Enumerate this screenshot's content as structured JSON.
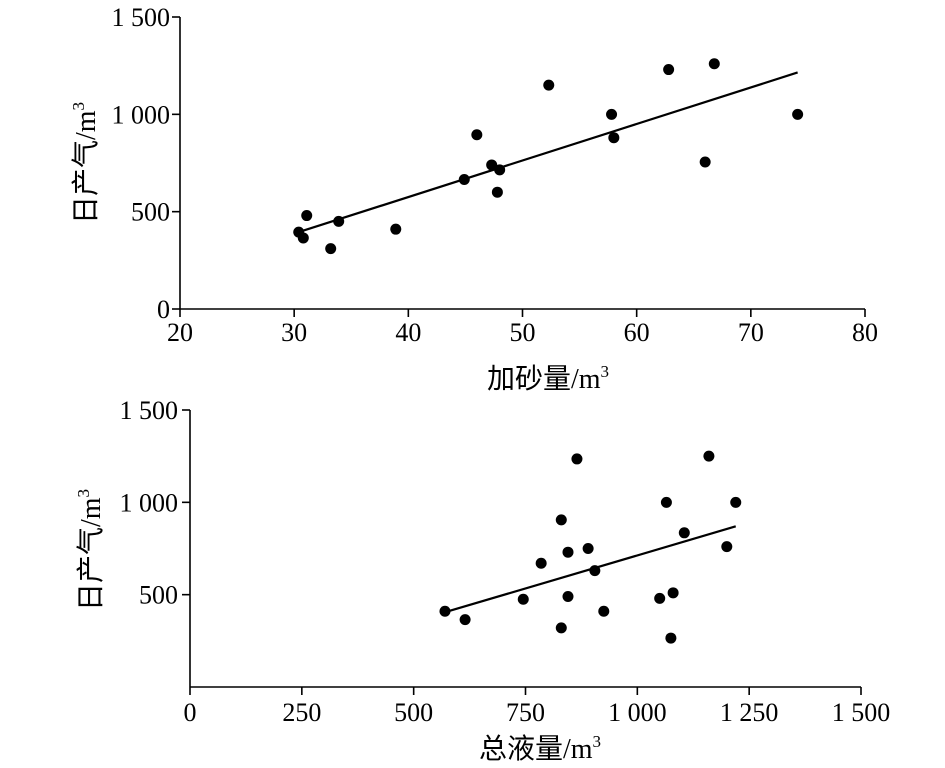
{
  "chart_data": [
    {
      "type": "scatter",
      "xlabel": "加砂量/m",
      "xlabel_sup": "3",
      "ylabel": "日产气/m",
      "ylabel_sup": "3",
      "xlim": [
        20,
        80
      ],
      "ylim": [
        0,
        1500
      ],
      "xticks": [
        20,
        30,
        40,
        50,
        60,
        70,
        80
      ],
      "xtick_labels": [
        "20",
        "30",
        "40",
        "50",
        "60",
        "70",
        "80"
      ],
      "yticks": [
        0,
        500,
        1000,
        1500
      ],
      "ytick_labels": [
        "0",
        "500",
        "1 000",
        "1 500"
      ],
      "grid": false,
      "points": [
        {
          "x": 30.4,
          "y": 395
        },
        {
          "x": 30.8,
          "y": 365
        },
        {
          "x": 31.1,
          "y": 480
        },
        {
          "x": 33.2,
          "y": 310
        },
        {
          "x": 33.9,
          "y": 450
        },
        {
          "x": 38.9,
          "y": 410
        },
        {
          "x": 44.9,
          "y": 665
        },
        {
          "x": 46.0,
          "y": 895
        },
        {
          "x": 47.3,
          "y": 740
        },
        {
          "x": 47.8,
          "y": 600
        },
        {
          "x": 48.0,
          "y": 715
        },
        {
          "x": 52.3,
          "y": 1150
        },
        {
          "x": 57.8,
          "y": 1000
        },
        {
          "x": 58.0,
          "y": 880
        },
        {
          "x": 62.8,
          "y": 1230
        },
        {
          "x": 66.0,
          "y": 755
        },
        {
          "x": 66.8,
          "y": 1260
        },
        {
          "x": 74.1,
          "y": 1000
        }
      ],
      "trendline": {
        "x": [
          30.4,
          74.1
        ],
        "y": [
          395,
          1215
        ]
      }
    },
    {
      "type": "scatter",
      "xlabel": "总液量/m",
      "xlabel_sup": "3",
      "ylabel": "日产气/m",
      "ylabel_sup": "3",
      "xlim": [
        0,
        1500
      ],
      "ylim": [
        0,
        1500
      ],
      "xticks": [
        0,
        250,
        500,
        750,
        1000,
        1250,
        1500
      ],
      "xtick_labels": [
        "0",
        "250",
        "500",
        "750",
        "1 000",
        "1 250",
        "1 500"
      ],
      "yticks": [
        500,
        1000,
        1500
      ],
      "ytick_labels": [
        "500",
        "1 000",
        "1 500"
      ],
      "grid": false,
      "points": [
        {
          "x": 570,
          "y": 410
        },
        {
          "x": 615,
          "y": 365
        },
        {
          "x": 745,
          "y": 475
        },
        {
          "x": 785,
          "y": 670
        },
        {
          "x": 830,
          "y": 905
        },
        {
          "x": 830,
          "y": 320
        },
        {
          "x": 845,
          "y": 730
        },
        {
          "x": 845,
          "y": 490
        },
        {
          "x": 865,
          "y": 1235
        },
        {
          "x": 890,
          "y": 750
        },
        {
          "x": 905,
          "y": 630
        },
        {
          "x": 925,
          "y": 410
        },
        {
          "x": 1050,
          "y": 480
        },
        {
          "x": 1065,
          "y": 1000
        },
        {
          "x": 1075,
          "y": 265
        },
        {
          "x": 1080,
          "y": 510
        },
        {
          "x": 1105,
          "y": 835
        },
        {
          "x": 1160,
          "y": 1250
        },
        {
          "x": 1200,
          "y": 760
        },
        {
          "x": 1220,
          "y": 1000
        }
      ],
      "trendline": {
        "x": [
          570,
          1220
        ],
        "y": [
          405,
          870
        ]
      }
    }
  ]
}
